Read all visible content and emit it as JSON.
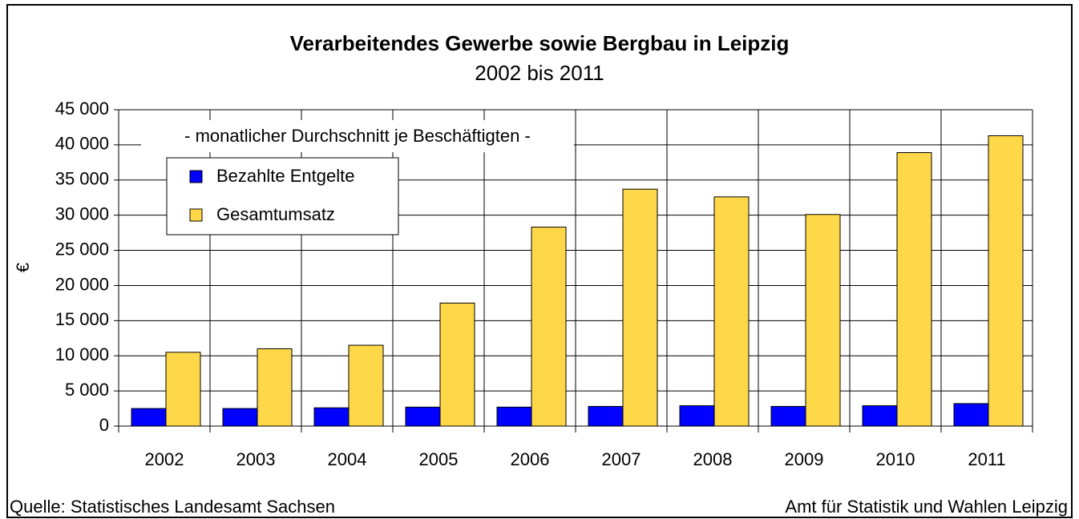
{
  "chart_data": {
    "type": "bar",
    "title": "Verarbeitendes Gewerbe sowie Bergbau in Leipzig",
    "subtitle": "2002 bis 2011",
    "annotation": "- monatlicher Durchschnitt je Beschäftigten -",
    "y_label": "€",
    "source": "Quelle: Statistisches Landesamt Sachsen",
    "credit": "Amt für Statistik und Wahlen Leipzig",
    "categories": [
      "2002",
      "2003",
      "2004",
      "2005",
      "2006",
      "2007",
      "2008",
      "2009",
      "2010",
      "2011"
    ],
    "series": [
      {
        "name": "Bezahlte Entgelte",
        "color": "#0000ff",
        "values": [
          2500,
          2500,
          2600,
          2700,
          2700,
          2800,
          2900,
          2800,
          2900,
          3200
        ]
      },
      {
        "name": "Gesamtumsatz",
        "color": "#ffd84a",
        "values": [
          10500,
          11000,
          11500,
          17500,
          28300,
          33700,
          32600,
          30100,
          38900,
          41300
        ]
      }
    ],
    "ylim": [
      0,
      45000
    ],
    "yticks": [
      0,
      {
        "value": 5000,
        "label": "5 000"
      },
      {
        "value": 10000,
        "label": "10 000"
      },
      {
        "value": 15000,
        "label": "15 000"
      },
      {
        "value": 20000,
        "label": "20 000"
      },
      {
        "value": 25000,
        "label": "25 000"
      },
      {
        "value": 30000,
        "label": "30 000"
      },
      {
        "value": 35000,
        "label": "35 000"
      },
      {
        "value": 40000,
        "label": "40 000"
      },
      {
        "value": 45000,
        "label": "45 000"
      }
    ],
    "grid": true
  }
}
